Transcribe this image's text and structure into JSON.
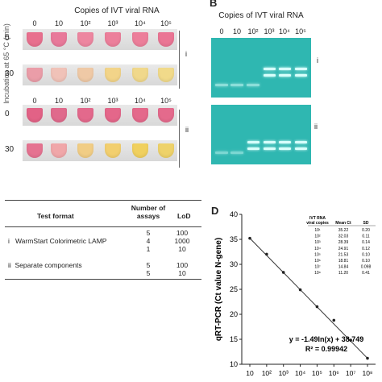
{
  "panels": {
    "b": "B",
    "d": "D"
  },
  "panel_a": {
    "heading": "Copies of IVT viral RNA",
    "side_label": "Incubation at 65 °C (min)",
    "column_labels": [
      "0",
      "10",
      "10²",
      "10³",
      "10⁴",
      "10⁵"
    ],
    "rows": [
      {
        "time": "0",
        "roman": "i",
        "colors": [
          "#e8708e",
          "#e8799a",
          "#ed86a0",
          "#ec7f9b",
          "#ec7e9a",
          "#ea7594"
        ]
      },
      {
        "time": "30",
        "roman": "",
        "colors": [
          "#ea9da8",
          "#f0c2b8",
          "#efc9a6",
          "#f2d489",
          "#f0d88b",
          "#f1da8a"
        ]
      },
      {
        "time": "0",
        "roman": "ii",
        "colors": [
          "#e26286",
          "#e06a8c",
          "#e3698c",
          "#e4678a",
          "#e4698b",
          "#e46a8c"
        ]
      },
      {
        "time": "30",
        "roman": "",
        "colors": [
          "#e57391",
          "#f0a7a9",
          "#f1cd85",
          "#f2cf6f",
          "#f0d05f",
          "#eed26a"
        ]
      }
    ]
  },
  "panel_b": {
    "heading": "Copies of IVT viral RNA",
    "column_labels": [
      "0",
      "10",
      "10²",
      "10³",
      "10⁴",
      "10⁵"
    ],
    "roman": [
      "i",
      "ii"
    ]
  },
  "panel_c": {
    "header_format": "Test format",
    "header_assays": "Number of assays",
    "header_lod": "LoD",
    "rows": [
      {
        "label": "",
        "assays": "5",
        "lod": "100"
      },
      {
        "label": "i   WarmStart Colorimetric LAMP",
        "assays": "4",
        "lod": "1000"
      },
      {
        "label": "",
        "assays": "1",
        "lod": "10"
      },
      {
        "label": "",
        "assays": "",
        "lod": ""
      },
      {
        "label": "ii  Separate components",
        "assays": "5",
        "lod": "100"
      },
      {
        "label": "",
        "assays": "5",
        "lod": "10"
      }
    ]
  },
  "chart_data": {
    "type": "scatter",
    "ylabel": "qRT-PCR (Ct value N-gene)",
    "xlabel": "",
    "x_tick_labels": [
      "10",
      "10²",
      "10³",
      "10⁴",
      "10⁵",
      "10⁶",
      "10⁷",
      "10⁸"
    ],
    "y_tick_labels": [
      "10",
      "15",
      "20",
      "25",
      "30",
      "35",
      "40"
    ],
    "ylim": [
      10,
      40
    ],
    "x": [
      10,
      100,
      1000,
      10000,
      100000,
      1000000,
      10000000,
      100000000
    ],
    "y": [
      35.22,
      32.03,
      28.39,
      24.91,
      21.53,
      18.81,
      14.84,
      11.2
    ],
    "equation": "y = -1.49ln(x) + 38.749",
    "r_squared": "R² = 0.99942",
    "inset_table": {
      "headers": [
        "IVT RNA viral copies",
        "Mean Ct",
        "SD"
      ],
      "rows": [
        [
          "10¹",
          "35.22",
          "0.20"
        ],
        [
          "10²",
          "32.03",
          "0.11"
        ],
        [
          "10³",
          "28.39",
          "0.14"
        ],
        [
          "10⁴",
          "24.91",
          "0.12"
        ],
        [
          "10⁵",
          "21.53",
          "0.10"
        ],
        [
          "10⁶",
          "18.81",
          "0.10"
        ],
        [
          "10⁷",
          "14.84",
          "0.098"
        ],
        [
          "10⁸",
          "11.20",
          "0.41"
        ]
      ]
    }
  }
}
